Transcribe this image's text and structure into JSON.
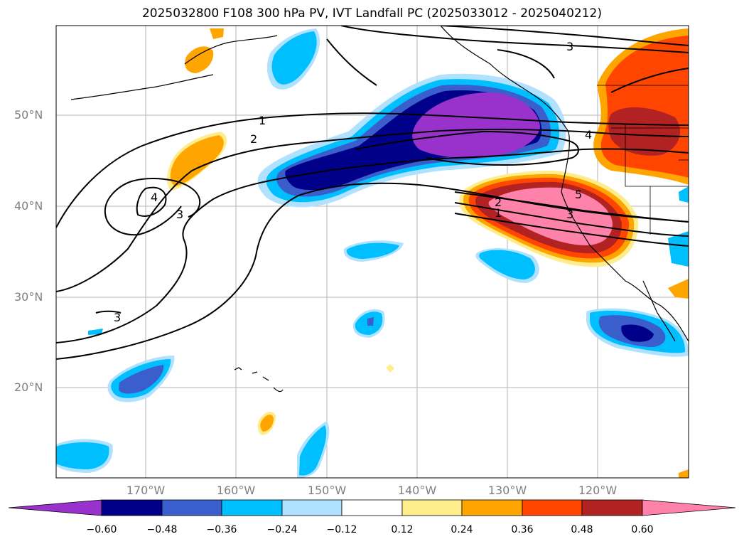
{
  "title": "2025032800 F108 300 hPa PV, IVT Landfall PC (2025033012 - 2025040212)",
  "lat_labels": [
    "50°N",
    "40°N",
    "30°N",
    "20°N"
  ],
  "lon_labels": [
    "170°W",
    "160°W",
    "150°W",
    "140°W",
    "130°W",
    "120°W"
  ],
  "contour_labels": [
    "1",
    "2",
    "3",
    "4",
    "1",
    "2",
    "3",
    "4",
    "5",
    "3",
    "3"
  ],
  "colorbar": {
    "colors": [
      "#9932cc",
      "#00008b",
      "#3a5fcd",
      "#00bfff",
      "#b0e2ff",
      "#ffffff",
      "#ffec8b",
      "#ffa500",
      "#ff4500",
      "#b22222",
      "#ff82ab"
    ],
    "ticks": [
      "−0.60",
      "−0.48",
      "−0.36",
      "−0.24",
      "−0.12",
      "0.12",
      "0.24",
      "0.36",
      "0.48",
      "0.60"
    ]
  }
}
